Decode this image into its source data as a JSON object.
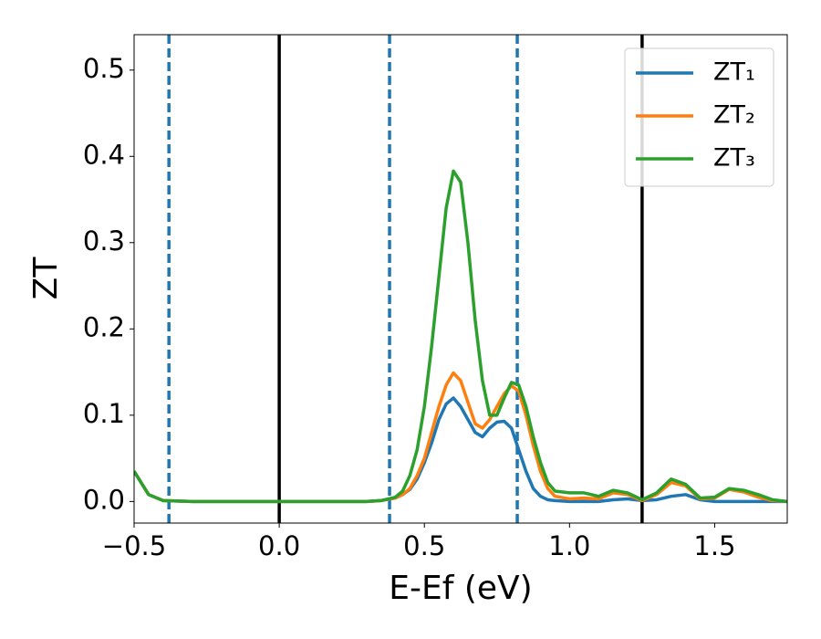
{
  "chart_data": {
    "type": "line",
    "xlabel": "E-Ef (eV)",
    "ylabel": "ZT",
    "x": [
      -0.5,
      -0.45,
      -0.4,
      -0.3,
      -0.2,
      -0.1,
      0,
      0.1,
      0.2,
      0.3,
      0.35,
      0.4,
      0.425,
      0.45,
      0.475,
      0.5,
      0.525,
      0.55,
      0.575,
      0.6,
      0.625,
      0.65,
      0.675,
      0.7,
      0.725,
      0.75,
      0.775,
      0.8,
      0.825,
      0.85,
      0.875,
      0.9,
      0.925,
      0.95,
      1.0,
      1.05,
      1.1,
      1.15,
      1.2,
      1.25,
      1.3,
      1.35,
      1.4,
      1.45,
      1.5,
      1.55,
      1.6,
      1.65,
      1.7,
      1.75
    ],
    "series": [
      {
        "name": "ZT₁",
        "color": "#1f77b4",
        "values": [
          0.035,
          0.008,
          0.001,
          0,
          0,
          0,
          0,
          0,
          0,
          0,
          0.001,
          0.004,
          0.008,
          0.014,
          0.026,
          0.045,
          0.068,
          0.095,
          0.113,
          0.12,
          0.11,
          0.095,
          0.08,
          0.075,
          0.085,
          0.092,
          0.093,
          0.085,
          0.06,
          0.035,
          0.015,
          0.006,
          0.002,
          0.001,
          0,
          0,
          0,
          0.002,
          0.003,
          0.001,
          0.002,
          0.006,
          0.008,
          0.002,
          0,
          0,
          0,
          0,
          0,
          0
        ]
      },
      {
        "name": "ZT₂",
        "color": "#ff7f0e",
        "values": [
          0.035,
          0.008,
          0.001,
          0,
          0,
          0,
          0,
          0,
          0,
          0,
          0.001,
          0.004,
          0.008,
          0.015,
          0.03,
          0.05,
          0.08,
          0.11,
          0.135,
          0.149,
          0.14,
          0.115,
          0.09,
          0.085,
          0.095,
          0.11,
          0.125,
          0.134,
          0.128,
          0.1,
          0.065,
          0.035,
          0.015,
          0.006,
          0.003,
          0.004,
          0.003,
          0.01,
          0.008,
          0.001,
          0.008,
          0.022,
          0.018,
          0.003,
          0.004,
          0.014,
          0.011,
          0.005,
          0.001,
          0
        ]
      },
      {
        "name": "ZT₃",
        "color": "#2ca02c",
        "values": [
          0.035,
          0.008,
          0.001,
          0,
          0,
          0,
          0,
          0,
          0,
          0,
          0.001,
          0.005,
          0.012,
          0.03,
          0.06,
          0.11,
          0.18,
          0.26,
          0.34,
          0.383,
          0.37,
          0.3,
          0.21,
          0.14,
          0.1,
          0.1,
          0.12,
          0.138,
          0.135,
          0.11,
          0.075,
          0.045,
          0.022,
          0.012,
          0.01,
          0.01,
          0.006,
          0.013,
          0.01,
          0.002,
          0.01,
          0.026,
          0.02,
          0.004,
          0.005,
          0.015,
          0.013,
          0.008,
          0.002,
          0
        ]
      }
    ],
    "vlines": [
      {
        "x": -0.38,
        "color": "#1f77b4",
        "style": "dashed"
      },
      {
        "x": 0.38,
        "color": "#1f77b4",
        "style": "dashed"
      },
      {
        "x": 0.82,
        "color": "#1f77b4",
        "style": "dashed"
      },
      {
        "x": 0,
        "color": "#000000",
        "style": "solid"
      },
      {
        "x": 1.25,
        "color": "#000000",
        "style": "solid"
      }
    ],
    "xlim": [
      -0.5,
      1.75
    ],
    "ylim": [
      -0.025,
      0.541
    ],
    "xticks": [
      {
        "value": -0.5,
        "label": "−0.5"
      },
      {
        "value": 0,
        "label": "0.0"
      },
      {
        "value": 0.5,
        "label": "0.5"
      },
      {
        "value": 1,
        "label": "1.0"
      },
      {
        "value": 1.5,
        "label": "1.5"
      }
    ],
    "yticks": [
      {
        "value": 0,
        "label": "0.0"
      },
      {
        "value": 0.1,
        "label": "0.1"
      },
      {
        "value": 0.2,
        "label": "0.2"
      },
      {
        "value": 0.3,
        "label": "0.3"
      },
      {
        "value": 0.4,
        "label": "0.4"
      },
      {
        "value": 0.5,
        "label": "0.5"
      }
    ],
    "legend": "upper right",
    "grid": false
  }
}
